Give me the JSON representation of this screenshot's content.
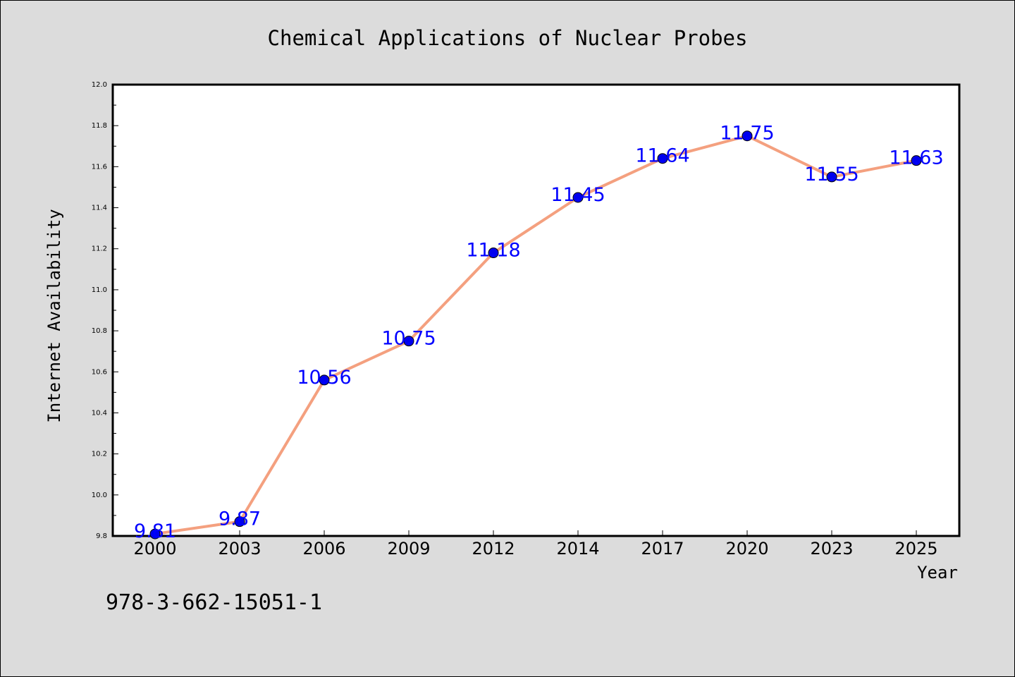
{
  "chart_data": {
    "type": "line",
    "title": "Chemical Applications of Nuclear Probes",
    "xlabel": "Year",
    "ylabel": "Internet Availability",
    "categories": [
      "2000",
      "2003",
      "2006",
      "2009",
      "2012",
      "2014",
      "2017",
      "2020",
      "2023",
      "2025"
    ],
    "values": [
      9.81,
      9.87,
      10.56,
      10.75,
      11.18,
      11.45,
      11.64,
      11.75,
      11.55,
      11.63
    ],
    "data_labels": [
      "9.81",
      "9.87",
      "10.56",
      "10.75",
      "11.18",
      "11.45",
      "11.64",
      "11.75",
      "11.55",
      "11.63"
    ],
    "ylim": [
      9.8,
      12.0
    ],
    "yticks": [
      "9.8",
      "10.0",
      "10.2",
      "10.4",
      "10.6",
      "10.8",
      "11.0",
      "11.2",
      "11.4",
      "11.6",
      "11.8",
      "12.0"
    ],
    "grid": false,
    "legend": "none",
    "colors": {
      "line": "#f4a07f",
      "marker": "#0000ee",
      "label": "#0000ff",
      "background": "#dcdcdc",
      "plot_area": "#ffffff"
    }
  },
  "footer_text": "978-3-662-15051-1"
}
